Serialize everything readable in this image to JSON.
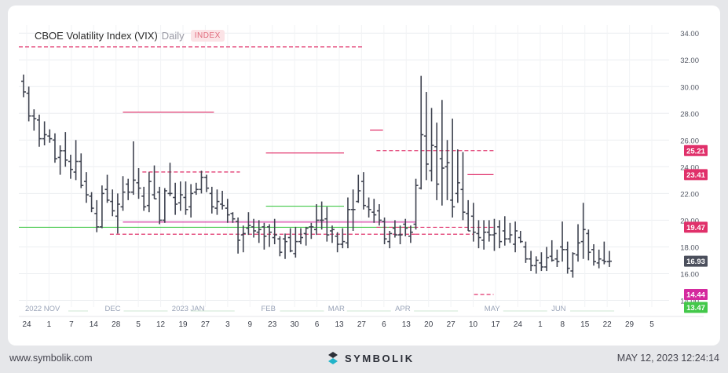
{
  "header": {
    "title": "CBOE Volatility Index (VIX)",
    "timeframe": "Daily",
    "badge": "INDEX"
  },
  "footer": {
    "website": "www.symbolik.com",
    "logo_text": "SYMBOLIK",
    "timestamp": "MAY 12, 2023 12:24:14"
  },
  "colors": {
    "bar": "#3f4350",
    "pink": "#e0306a",
    "green": "#43c84a",
    "current": "#4b4f5c",
    "magenta": "#d42a9e"
  },
  "chart_data": {
    "type": "ohlc",
    "ylim": [
      13.5,
      34.6
    ],
    "y_ticks": [
      "34.00",
      "32.00",
      "30.00",
      "28.00",
      "26.00",
      "24.00",
      "22.00",
      "20.00",
      "18.00",
      "16.00",
      "14.00"
    ],
    "x_labels": [
      "24",
      "1",
      "7",
      "14",
      "28",
      "5",
      "12",
      "19",
      "27",
      "3",
      "9",
      "23",
      "30",
      "6",
      "13",
      "27",
      "6",
      "13",
      "20",
      "27",
      "10",
      "17",
      "24",
      "1",
      "8",
      "15",
      "22",
      "29",
      "5"
    ],
    "month_labels": [
      "2022 NOV",
      "DEC",
      "2023 JAN",
      "FEB",
      "MAR",
      "APR",
      "MAY",
      "JUN"
    ],
    "series": [
      [
        30.4,
        30.9,
        29.2,
        29.6
      ],
      [
        29.5,
        30.0,
        27.4,
        27.8
      ],
      [
        27.8,
        28.3,
        26.7,
        27.6
      ],
      [
        27.5,
        27.9,
        25.5,
        26.1
      ],
      [
        26.1,
        27.4,
        25.6,
        26.4
      ],
      [
        26.3,
        26.8,
        25.8,
        26.1
      ],
      [
        26.0,
        26.5,
        24.3,
        24.6
      ],
      [
        24.7,
        25.6,
        23.4,
        25.2
      ],
      [
        25.2,
        26.6,
        24.0,
        24.5
      ],
      [
        24.4,
        24.9,
        23.1,
        23.8
      ],
      [
        23.6,
        26.0,
        23.0,
        24.4
      ],
      [
        24.4,
        25.0,
        22.4,
        22.6
      ],
      [
        22.9,
        23.6,
        21.3,
        21.9
      ],
      [
        21.8,
        22.1,
        20.6,
        20.9
      ],
      [
        20.5,
        21.5,
        19.1,
        19.5
      ],
      [
        19.5,
        22.6,
        19.4,
        22.0
      ],
      [
        22.3,
        23.4,
        21.3,
        21.5
      ],
      [
        21.4,
        22.3,
        20.3,
        20.7
      ],
      [
        20.3,
        22.0,
        19.0,
        21.2
      ],
      [
        21.0,
        23.3,
        20.7,
        22.1
      ],
      [
        22.7,
        23.1,
        21.5,
        22.1
      ],
      [
        22.1,
        25.9,
        21.9,
        23.0
      ],
      [
        22.8,
        23.9,
        21.6,
        22.4
      ],
      [
        21.8,
        22.5,
        20.7,
        21.0
      ],
      [
        21.1,
        23.6,
        20.6,
        22.9
      ],
      [
        21.9,
        24.1,
        21.6,
        21.6
      ],
      [
        22.1,
        22.5,
        19.7,
        20.0
      ],
      [
        20.0,
        22.4,
        19.8,
        22.2
      ],
      [
        22.0,
        24.3,
        21.8,
        22.0
      ],
      [
        21.7,
        22.8,
        20.4,
        21.2
      ],
      [
        21.3,
        22.9,
        20.7,
        21.9
      ],
      [
        21.7,
        22.9,
        20.4,
        20.8
      ],
      [
        21.0,
        22.7,
        20.2,
        22.0
      ],
      [
        22.1,
        22.8,
        21.9,
        22.3
      ],
      [
        22.3,
        23.7,
        22.0,
        23.2
      ],
      [
        23.2,
        23.4,
        22.1,
        22.4
      ],
      [
        22.0,
        22.5,
        20.5,
        21.0
      ],
      [
        20.9,
        22.3,
        20.4,
        21.4
      ],
      [
        21.2,
        22.2,
        20.8,
        21.1
      ],
      [
        20.9,
        21.6,
        19.8,
        20.4
      ],
      [
        20.5,
        20.6,
        19.8,
        20.1
      ],
      [
        19.9,
        20.2,
        17.5,
        18.5
      ],
      [
        18.9,
        19.6,
        17.6,
        19.0
      ],
      [
        19.4,
        20.6,
        18.9,
        19.6
      ],
      [
        19.5,
        20.1,
        18.7,
        19.2
      ],
      [
        19.1,
        20.0,
        18.3,
        19.3
      ],
      [
        19.5,
        19.8,
        17.8,
        18.8
      ],
      [
        19.5,
        19.7,
        18.0,
        19.1
      ],
      [
        18.7,
        20.1,
        18.2,
        18.9
      ],
      [
        18.6,
        18.8,
        17.3,
        17.6
      ],
      [
        18.6,
        19.0,
        17.1,
        18.4
      ],
      [
        18.7,
        19.4,
        17.6,
        17.7
      ],
      [
        17.5,
        19.5,
        17.2,
        18.4
      ],
      [
        18.4,
        19.4,
        18.2,
        18.7
      ],
      [
        19.0,
        19.5,
        18.1,
        19.4
      ],
      [
        19.5,
        19.8,
        18.6,
        19.5
      ],
      [
        19.3,
        21.2,
        18.9,
        20.0
      ],
      [
        20.0,
        21.4,
        19.3,
        20.0
      ],
      [
        20.1,
        21.0,
        18.4,
        18.9
      ],
      [
        19.2,
        19.6,
        18.3,
        19.3
      ],
      [
        18.8,
        19.1,
        17.6,
        18.2
      ],
      [
        18.2,
        19.4,
        17.9,
        18.4
      ],
      [
        18.3,
        21.7,
        17.9,
        20.8
      ],
      [
        20.8,
        22.3,
        19.2,
        20.8
      ],
      [
        21.4,
        23.4,
        21.3,
        22.2
      ],
      [
        22.9,
        23.6,
        20.8,
        21.1
      ],
      [
        21.0,
        21.7,
        20.2,
        20.8
      ],
      [
        20.6,
        21.6,
        19.8,
        20.4
      ],
      [
        20.7,
        21.2,
        19.6,
        20.0
      ],
      [
        19.9,
        20.2,
        18.2,
        18.6
      ],
      [
        18.4,
        19.2,
        17.9,
        19.0
      ],
      [
        19.4,
        20.0,
        18.7,
        18.9
      ],
      [
        18.9,
        19.6,
        18.2,
        18.9
      ],
      [
        19.7,
        20.1,
        18.8,
        19.4
      ],
      [
        18.8,
        19.6,
        18.3,
        19.1
      ],
      [
        19.7,
        23.1,
        19.3,
        22.6
      ],
      [
        22.4,
        30.8,
        22.3,
        26.4
      ],
      [
        26.3,
        29.6,
        23.0,
        24.2
      ],
      [
        23.7,
        28.4,
        22.9,
        25.6
      ],
      [
        25.5,
        27.3,
        21.5,
        22.7
      ],
      [
        24.6,
        29.0,
        21.1,
        23.9
      ],
      [
        24.0,
        26.0,
        21.5,
        24.3
      ],
      [
        21.5,
        27.6,
        20.2,
        21.0
      ],
      [
        22.0,
        25.3,
        21.3,
        22.8
      ],
      [
        22.3,
        25.1,
        20.0,
        20.6
      ],
      [
        20.5,
        21.5,
        19.2,
        19.2
      ],
      [
        20.3,
        21.3,
        18.4,
        19.1
      ],
      [
        19.0,
        20.0,
        17.9,
        18.7
      ],
      [
        18.5,
        20.0,
        17.8,
        19.1
      ],
      [
        19.1,
        20.0,
        18.4,
        18.9
      ],
      [
        18.9,
        20.1,
        17.7,
        19.0
      ],
      [
        19.5,
        20.0,
        17.9,
        18.4
      ],
      [
        19.2,
        20.3,
        18.1,
        18.6
      ],
      [
        18.6,
        19.8,
        18.3,
        18.9
      ],
      [
        18.2,
        19.9,
        17.6,
        19.2
      ],
      [
        18.7,
        19.2,
        18.3,
        18.4
      ],
      [
        18.0,
        18.4,
        16.8,
        17.1
      ],
      [
        17.1,
        17.7,
        16.2,
        16.6
      ],
      [
        16.6,
        17.3,
        16.0,
        17.0
      ],
      [
        16.8,
        17.6,
        16.2,
        16.5
      ],
      [
        16.5,
        18.0,
        16.2,
        17.2
      ],
      [
        17.3,
        18.5,
        16.9,
        17.0
      ],
      [
        17.1,
        17.8,
        16.5,
        16.9
      ],
      [
        18.0,
        19.9,
        16.9,
        17.8
      ],
      [
        17.8,
        18.4,
        16.0,
        16.4
      ],
      [
        16.2,
        17.6,
        15.7,
        17.5
      ],
      [
        17.4,
        19.7,
        16.9,
        18.3
      ],
      [
        18.4,
        21.3,
        17.1,
        19.3
      ],
      [
        19.0,
        19.3,
        17.0,
        17.6
      ],
      [
        17.8,
        18.2,
        16.6,
        16.9
      ],
      [
        16.8,
        17.8,
        16.4,
        17.1
      ],
      [
        17.0,
        18.4,
        16.7,
        16.9
      ],
      [
        16.9,
        17.7,
        16.5,
        16.93
      ]
    ],
    "levels": [
      {
        "value": 32.97,
        "style": "pink-dashed",
        "from": 0.0,
        "to": 0.53
      },
      {
        "value": 28.08,
        "style": "pink-solid",
        "from": 0.16,
        "to": 0.3
      },
      {
        "value": 23.61,
        "style": "pink-dashed",
        "from": 0.19,
        "to": 0.34
      },
      {
        "value": 25.03,
        "style": "pink-solid",
        "from": 0.38,
        "to": 0.5
      },
      {
        "value": 21.05,
        "style": "green-solid",
        "from": 0.38,
        "to": 0.5
      },
      {
        "value": 19.47,
        "style": "green-solid",
        "from": 0.0,
        "to": 0.61
      },
      {
        "value": 19.86,
        "style": "magenta-solid",
        "from": 0.16,
        "to": 0.61
      },
      {
        "value": 18.95,
        "style": "pink-dashed",
        "from": 0.14,
        "to": 0.61
      },
      {
        "value": 26.74,
        "style": "pink-solid",
        "from": 0.54,
        "to": 0.56
      },
      {
        "value": 25.21,
        "style": "pink-dashed",
        "from": 0.55,
        "to": 0.73
      },
      {
        "value": 23.41,
        "style": "pink-solid",
        "from": 0.69,
        "to": 0.73
      },
      {
        "value": 19.47,
        "style": "pink-dashed",
        "from": 0.55,
        "to": 0.73
      },
      {
        "value": 18.95,
        "style": "pink-dashed",
        "from": 0.61,
        "to": 0.7
      },
      {
        "value": 14.44,
        "style": "pink-dashed",
        "from": 0.7,
        "to": 0.73
      }
    ],
    "price_labels": [
      {
        "text": "25.21",
        "value": 25.21,
        "color": "#e0306a"
      },
      {
        "text": "23.41",
        "value": 23.41,
        "color": "#e0306a"
      },
      {
        "text": "19.47",
        "value": 19.47,
        "color": "#e0306a"
      },
      {
        "text": "16.93",
        "value": 16.93,
        "color": "#4b4f5c"
      },
      {
        "text": "14.44",
        "value": 14.44,
        "color": "#d42a9e"
      },
      {
        "text": "13.47",
        "value": 13.47,
        "color": "#43c84a"
      }
    ]
  }
}
